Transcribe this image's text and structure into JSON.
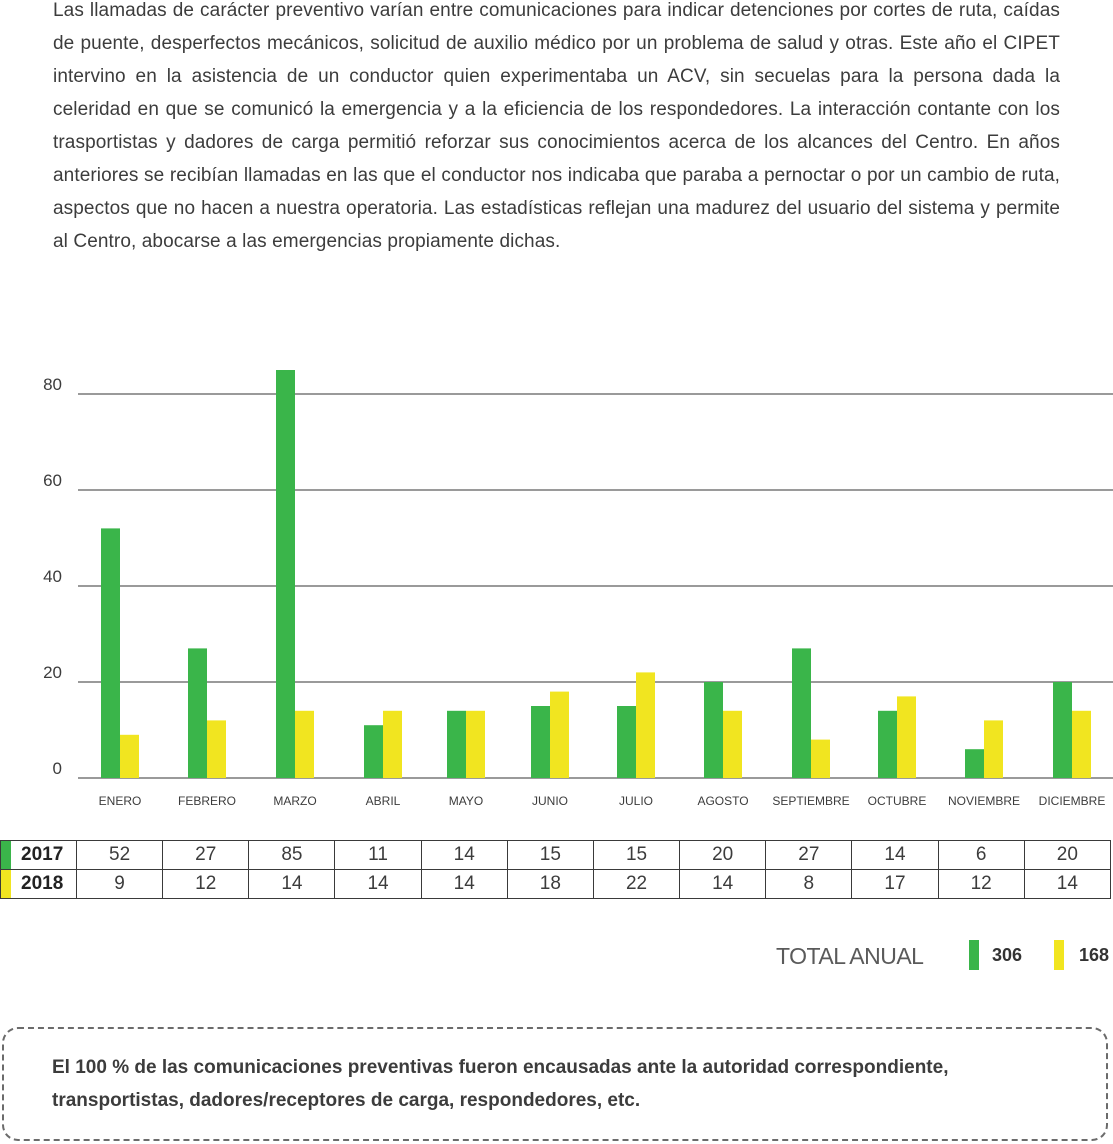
{
  "intro_text": "Las llamadas de carácter preventivo varían entre comunicaciones para indicar detenciones por cortes de ruta, caídas de puente, desperfectos mecánicos, solicitud de auxilio médico por un problema de salud y otras. Este año el CIPET intervino en la asistencia de un conductor quien experimentaba un ACV, sin secuelas para la persona dada la celeridad en que se comunicó la emergencia y a la eficiencia de los respondedores. La interacción contante con los trasportistas y dadores de carga permitió reforzar sus conocimientos acerca de los alcances del Centro. En años anteriores se recibían llamadas en las que el conductor nos indicaba que paraba a pernoctar o por un cambio de ruta, aspectos que no hacen a nuestra operatoria. Las estadísticas reflejan una madurez del usuario del sistema y permite al Centro, abocarse a las emergencias propiamente dichas.",
  "chart_data": {
    "type": "bar",
    "categories": [
      "ENERO",
      "FEBRERO",
      "MARZO",
      "ABRIL",
      "MAYO",
      "JUNIO",
      "JULIO",
      "AGOSTO",
      "SEPTIEMBRE",
      "OCTUBRE",
      "NOVIEMBRE",
      "DICIEMBRE"
    ],
    "series": [
      {
        "name": "2017",
        "color": "#3ab54a",
        "values": [
          52,
          27,
          85,
          11,
          14,
          15,
          15,
          20,
          27,
          14,
          6,
          20
        ]
      },
      {
        "name": "2018",
        "color": "#f1e520",
        "values": [
          9,
          12,
          14,
          14,
          14,
          18,
          22,
          14,
          8,
          17,
          12,
          14
        ]
      }
    ],
    "yticks": [
      "0",
      "20",
      "40",
      "60",
      "80"
    ],
    "ylim": [
      0,
      85
    ],
    "grid": true
  },
  "table": {
    "rows": [
      {
        "label": "2017",
        "values": [
          "52",
          "27",
          "85",
          "11",
          "14",
          "15",
          "15",
          "20",
          "27",
          "14",
          "6",
          "20"
        ]
      },
      {
        "label": "2018",
        "values": [
          "9",
          "12",
          "14",
          "14",
          "14",
          "18",
          "22",
          "14",
          "8",
          "17",
          "12",
          "14"
        ]
      }
    ]
  },
  "total": {
    "label": "TOTAL ANUAL",
    "value_2017": "306",
    "value_2018": "168"
  },
  "note_text": "El 100 % de las comunicaciones preventivas fueron encausadas ante la autoridad correspondiente, transportistas, dadores/receptores de carga, respondedores, etc."
}
